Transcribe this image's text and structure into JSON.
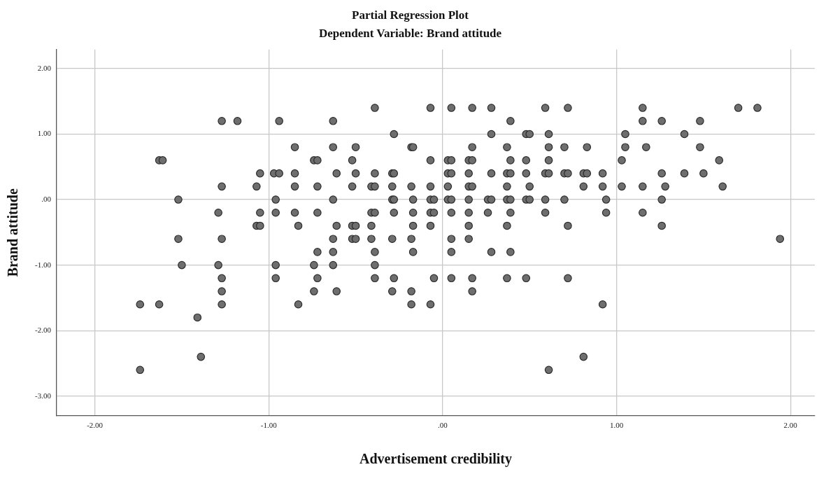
{
  "chart_data": {
    "type": "scatter",
    "title": "Partial Regression Plot",
    "subtitle": "Dependent Variable: Brand attitude",
    "xlabel": "Advertisement credibility",
    "ylabel": "Brand attitude",
    "xlim": [
      -2.22,
      2.14
    ],
    "ylim": [
      -3.3,
      2.29
    ],
    "xticks": [
      {
        "value": -2,
        "label": "-2.00"
      },
      {
        "value": -1,
        "label": "-1.00"
      },
      {
        "value": 0,
        "label": ".00"
      },
      {
        "value": 1,
        "label": "1.00"
      },
      {
        "value": 2,
        "label": "2.00"
      }
    ],
    "yticks": [
      {
        "value": -3,
        "label": "-3.00"
      },
      {
        "value": -2,
        "label": "-2.00"
      },
      {
        "value": -1,
        "label": "-1.00"
      },
      {
        "value": 0,
        "label": ".00"
      },
      {
        "value": 1,
        "label": "1.00"
      },
      {
        "value": 2,
        "label": "2.00"
      }
    ],
    "grid": true,
    "legend": false,
    "marker": "circle",
    "series": [
      {
        "color": "#6e6e6e",
        "x": [
          -0.39,
          -0.07,
          0.05,
          0.17,
          0.28,
          0.59,
          0.72,
          1.15,
          1.7,
          1.81,
          -1.27,
          -1.18,
          -0.94,
          -0.63,
          0.39,
          1.15,
          1.26,
          1.48,
          -0.28,
          0.28,
          0.48,
          0.5,
          0.61,
          1.05,
          1.39,
          -0.85,
          -0.63,
          -0.5,
          -0.18,
          -0.17,
          0.17,
          0.37,
          0.61,
          0.7,
          0.83,
          1.05,
          1.17,
          1.48,
          -1.63,
          -1.61,
          -0.74,
          -0.72,
          -0.52,
          -0.07,
          0.03,
          0.05,
          0.15,
          0.17,
          0.39,
          0.48,
          0.61,
          1.03,
          1.59,
          -1.05,
          -0.97,
          -0.94,
          -0.85,
          -0.61,
          -0.5,
          -0.39,
          -0.29,
          -0.28,
          0.03,
          0.05,
          0.15,
          0.28,
          0.37,
          0.39,
          0.48,
          0.59,
          0.61,
          0.7,
          0.72,
          0.81,
          0.83,
          0.92,
          1.26,
          1.39,
          1.5,
          -1.27,
          -1.07,
          -0.85,
          -0.72,
          -0.52,
          -0.41,
          -0.39,
          -0.29,
          -0.18,
          -0.07,
          0.03,
          0.15,
          0.17,
          0.37,
          0.5,
          0.81,
          0.92,
          1.03,
          1.15,
          1.28,
          1.61,
          -1.52,
          -0.96,
          -0.63,
          -0.29,
          -0.28,
          -0.17,
          -0.07,
          -0.05,
          0.03,
          0.05,
          0.15,
          0.26,
          0.28,
          0.37,
          0.39,
          0.48,
          0.5,
          0.59,
          0.7,
          0.94,
          1.26,
          -1.29,
          -1.05,
          -0.96,
          -0.85,
          -0.72,
          -0.41,
          -0.39,
          -0.28,
          -0.17,
          -0.07,
          -0.05,
          0.05,
          0.15,
          0.26,
          0.39,
          0.59,
          0.94,
          1.15,
          -1.07,
          -1.05,
          -0.83,
          -0.61,
          -0.52,
          -0.5,
          -0.41,
          -0.17,
          -0.07,
          0.15,
          0.37,
          0.72,
          1.26,
          -1.52,
          -1.27,
          -0.63,
          -0.52,
          -0.5,
          -0.41,
          -0.29,
          -0.18,
          0.05,
          0.15,
          1.94,
          -0.72,
          -0.63,
          -0.39,
          -0.17,
          0.05,
          0.28,
          0.39,
          -1.5,
          -1.29,
          -0.96,
          -0.74,
          -0.63,
          -0.39,
          -1.27,
          -0.96,
          -0.72,
          -0.39,
          -0.28,
          -0.05,
          0.05,
          0.17,
          0.37,
          0.48,
          0.72,
          -1.27,
          -0.74,
          -0.61,
          -0.29,
          -0.18,
          0.17,
          -1.74,
          -1.63,
          -1.27,
          -0.83,
          -0.18,
          -0.07,
          0.92,
          -1.41,
          -1.39,
          0.81,
          -1.74,
          0.61
        ],
        "values": [
          1.4,
          1.4,
          1.4,
          1.4,
          1.4,
          1.4,
          1.4,
          1.4,
          1.4,
          1.4,
          1.2,
          1.2,
          1.2,
          1.2,
          1.2,
          1.2,
          1.2,
          1.2,
          1.0,
          1.0,
          1.0,
          1.0,
          1.0,
          1.0,
          1.0,
          0.8,
          0.8,
          0.8,
          0.8,
          0.8,
          0.8,
          0.8,
          0.8,
          0.8,
          0.8,
          0.8,
          0.8,
          0.8,
          0.6,
          0.6,
          0.6,
          0.6,
          0.6,
          0.6,
          0.6,
          0.6,
          0.6,
          0.6,
          0.6,
          0.6,
          0.6,
          0.6,
          0.6,
          0.4,
          0.4,
          0.4,
          0.4,
          0.4,
          0.4,
          0.4,
          0.4,
          0.4,
          0.4,
          0.4,
          0.4,
          0.4,
          0.4,
          0.4,
          0.4,
          0.4,
          0.4,
          0.4,
          0.4,
          0.4,
          0.4,
          0.4,
          0.4,
          0.4,
          0.4,
          0.2,
          0.2,
          0.2,
          0.2,
          0.2,
          0.2,
          0.2,
          0.2,
          0.2,
          0.2,
          0.2,
          0.2,
          0.2,
          0.2,
          0.2,
          0.2,
          0.2,
          0.2,
          0.2,
          0.2,
          0.2,
          0,
          0,
          0,
          0,
          0,
          0,
          0,
          0,
          0,
          0,
          0,
          0,
          0,
          0,
          0,
          0,
          0,
          0,
          0,
          0,
          0,
          -0.2,
          -0.2,
          -0.2,
          -0.2,
          -0.2,
          -0.2,
          -0.2,
          -0.2,
          -0.2,
          -0.2,
          -0.2,
          -0.2,
          -0.2,
          -0.2,
          -0.2,
          -0.2,
          -0.2,
          -0.2,
          -0.4,
          -0.4,
          -0.4,
          -0.4,
          -0.4,
          -0.4,
          -0.4,
          -0.4,
          -0.4,
          -0.4,
          -0.4,
          -0.4,
          -0.4,
          -0.6,
          -0.6,
          -0.6,
          -0.6,
          -0.6,
          -0.6,
          -0.6,
          -0.6,
          -0.6,
          -0.6,
          -0.6,
          -0.8,
          -0.8,
          -0.8,
          -0.8,
          -0.8,
          -0.8,
          -0.8,
          -1.0,
          -1.0,
          -1.0,
          -1.0,
          -1.0,
          -1.0,
          -1.2,
          -1.2,
          -1.2,
          -1.2,
          -1.2,
          -1.2,
          -1.2,
          -1.2,
          -1.2,
          -1.2,
          -1.2,
          -1.4,
          -1.4,
          -1.4,
          -1.4,
          -1.4,
          -1.4,
          -1.6,
          -1.6,
          -1.6,
          -1.6,
          -1.6,
          -1.6,
          -1.6,
          -1.8,
          -2.4,
          -2.4,
          -2.6,
          -2.6
        ]
      }
    ]
  }
}
